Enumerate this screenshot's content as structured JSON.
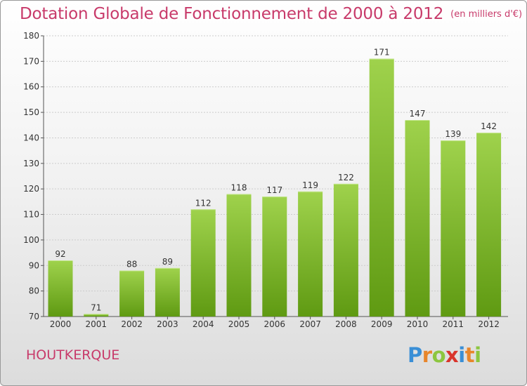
{
  "title": "Dotation Globale de Fonctionnement de 2000 à 2012",
  "unit_note": "(en milliers d'€)",
  "commune": "HOUTKERQUE",
  "logo": {
    "letters": [
      "P",
      "r",
      "o",
      "x",
      "i",
      "t",
      "i"
    ],
    "colors": [
      "#3a8fd6",
      "#e8862b",
      "#8cc63f",
      "#d9342b",
      "#3a8fd6",
      "#e8862b",
      "#8cc63f"
    ]
  },
  "colors": {
    "title": "#c83a6a",
    "bar_top": "#9fd24c",
    "bar_bottom": "#5f9a12",
    "grid": "#cccccc"
  },
  "chart_data": {
    "type": "bar",
    "title": "Dotation Globale de Fonctionnement de 2000 à 2012",
    "subtitle": "(en milliers d'€)",
    "categories": [
      "2000",
      "2001",
      "2002",
      "2003",
      "2004",
      "2005",
      "2006",
      "2007",
      "2008",
      "2009",
      "2010",
      "2011",
      "2012"
    ],
    "values": [
      92,
      71,
      88,
      89,
      112,
      118,
      117,
      119,
      122,
      171,
      147,
      139,
      142
    ],
    "ylim": [
      70,
      180
    ],
    "yticks": [
      70,
      80,
      90,
      100,
      110,
      120,
      130,
      140,
      150,
      160,
      170,
      180
    ],
    "grid": true,
    "xlabel": "",
    "ylabel": ""
  }
}
